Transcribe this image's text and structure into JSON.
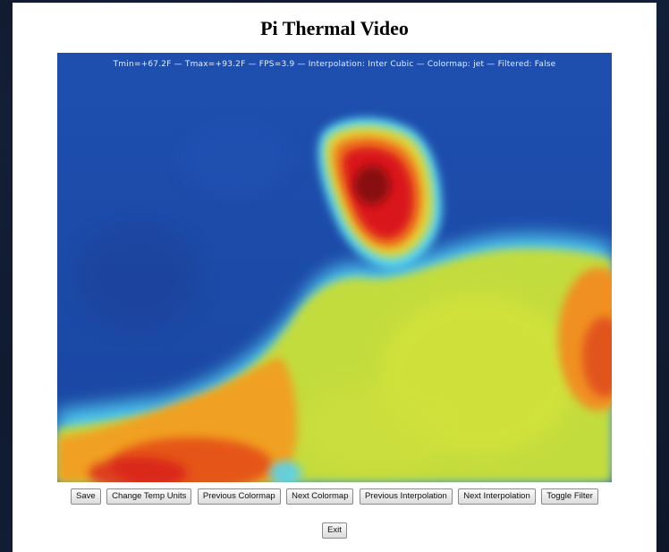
{
  "page": {
    "title": "Pi Thermal Video"
  },
  "overlay": {
    "status_text": "Tmin=+67.2F  —  Tmax=+93.2F  —  FPS=3.9  —  Interpolation: Inter Cubic  —  Colormap: jet  —  Filtered: False",
    "tmin": "+67.2F",
    "tmax": "+93.2F",
    "fps": "3.9",
    "interpolation": "Inter Cubic",
    "colormap": "jet",
    "filtered": "False"
  },
  "controls": {
    "save": "Save",
    "change_temp_units": "Change Temp Units",
    "previous_colormap": "Previous Colormap",
    "next_colormap": "Next Colormap",
    "previous_interpolation": "Previous Interpolation",
    "next_interpolation": "Next Interpolation",
    "toggle_filter": "Toggle Filter",
    "exit": "Exit"
  },
  "colors": {
    "cold": "#1d4fb0",
    "cool": "#2f8fe0",
    "cyan": "#5ad8f0",
    "warm": "#c8dc3a",
    "hot": "#f08a1c",
    "hottest": "#d9141a",
    "peak": "#7a0c0c"
  }
}
